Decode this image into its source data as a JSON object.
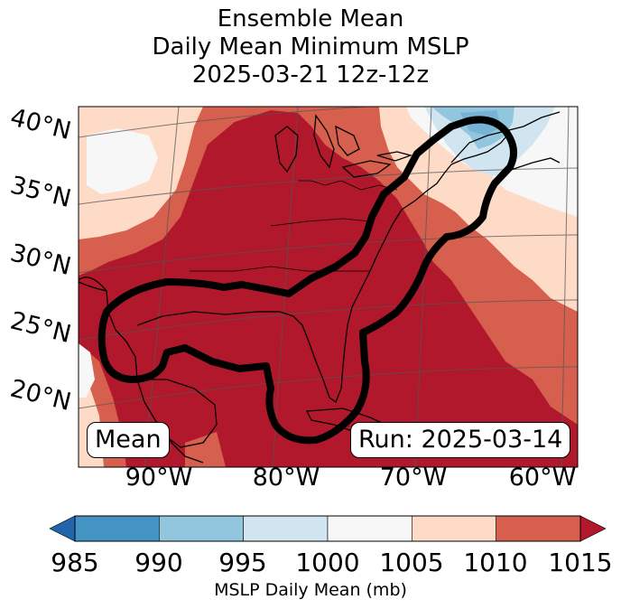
{
  "title": {
    "line1": "Ensemble Mean",
    "line2": "Daily Mean Minimum MSLP",
    "line3": "2025-03-21 12z-12z"
  },
  "map": {
    "lat_labels": [
      "40°N",
      "35°N",
      "30°N",
      "25°N",
      "20°N"
    ],
    "lon_labels": [
      "90°W",
      "80°W",
      "70°W",
      "60°W"
    ],
    "mean_box": "Mean",
    "run_box": "Run: 2025-03-14"
  },
  "colorbar": {
    "ticks": [
      "985",
      "990",
      "995",
      "1000",
      "1005",
      "1010",
      "1015"
    ],
    "label": "MSLP Daily Mean (mb)",
    "bins": [
      {
        "range": "<985",
        "color": "#2166ac"
      },
      {
        "range": "985-990",
        "color": "#4393c3"
      },
      {
        "range": "990-995",
        "color": "#92c5de"
      },
      {
        "range": "995-1000",
        "color": "#d1e5f0"
      },
      {
        "range": "1000-1005",
        "color": "#f7f7f7"
      },
      {
        "range": "1005-1010",
        "color": "#fddbc7"
      },
      {
        "range": "1010-1015",
        "color": "#d6604d"
      },
      {
        "range": ">1015",
        "color": "#b2182b"
      }
    ]
  }
}
